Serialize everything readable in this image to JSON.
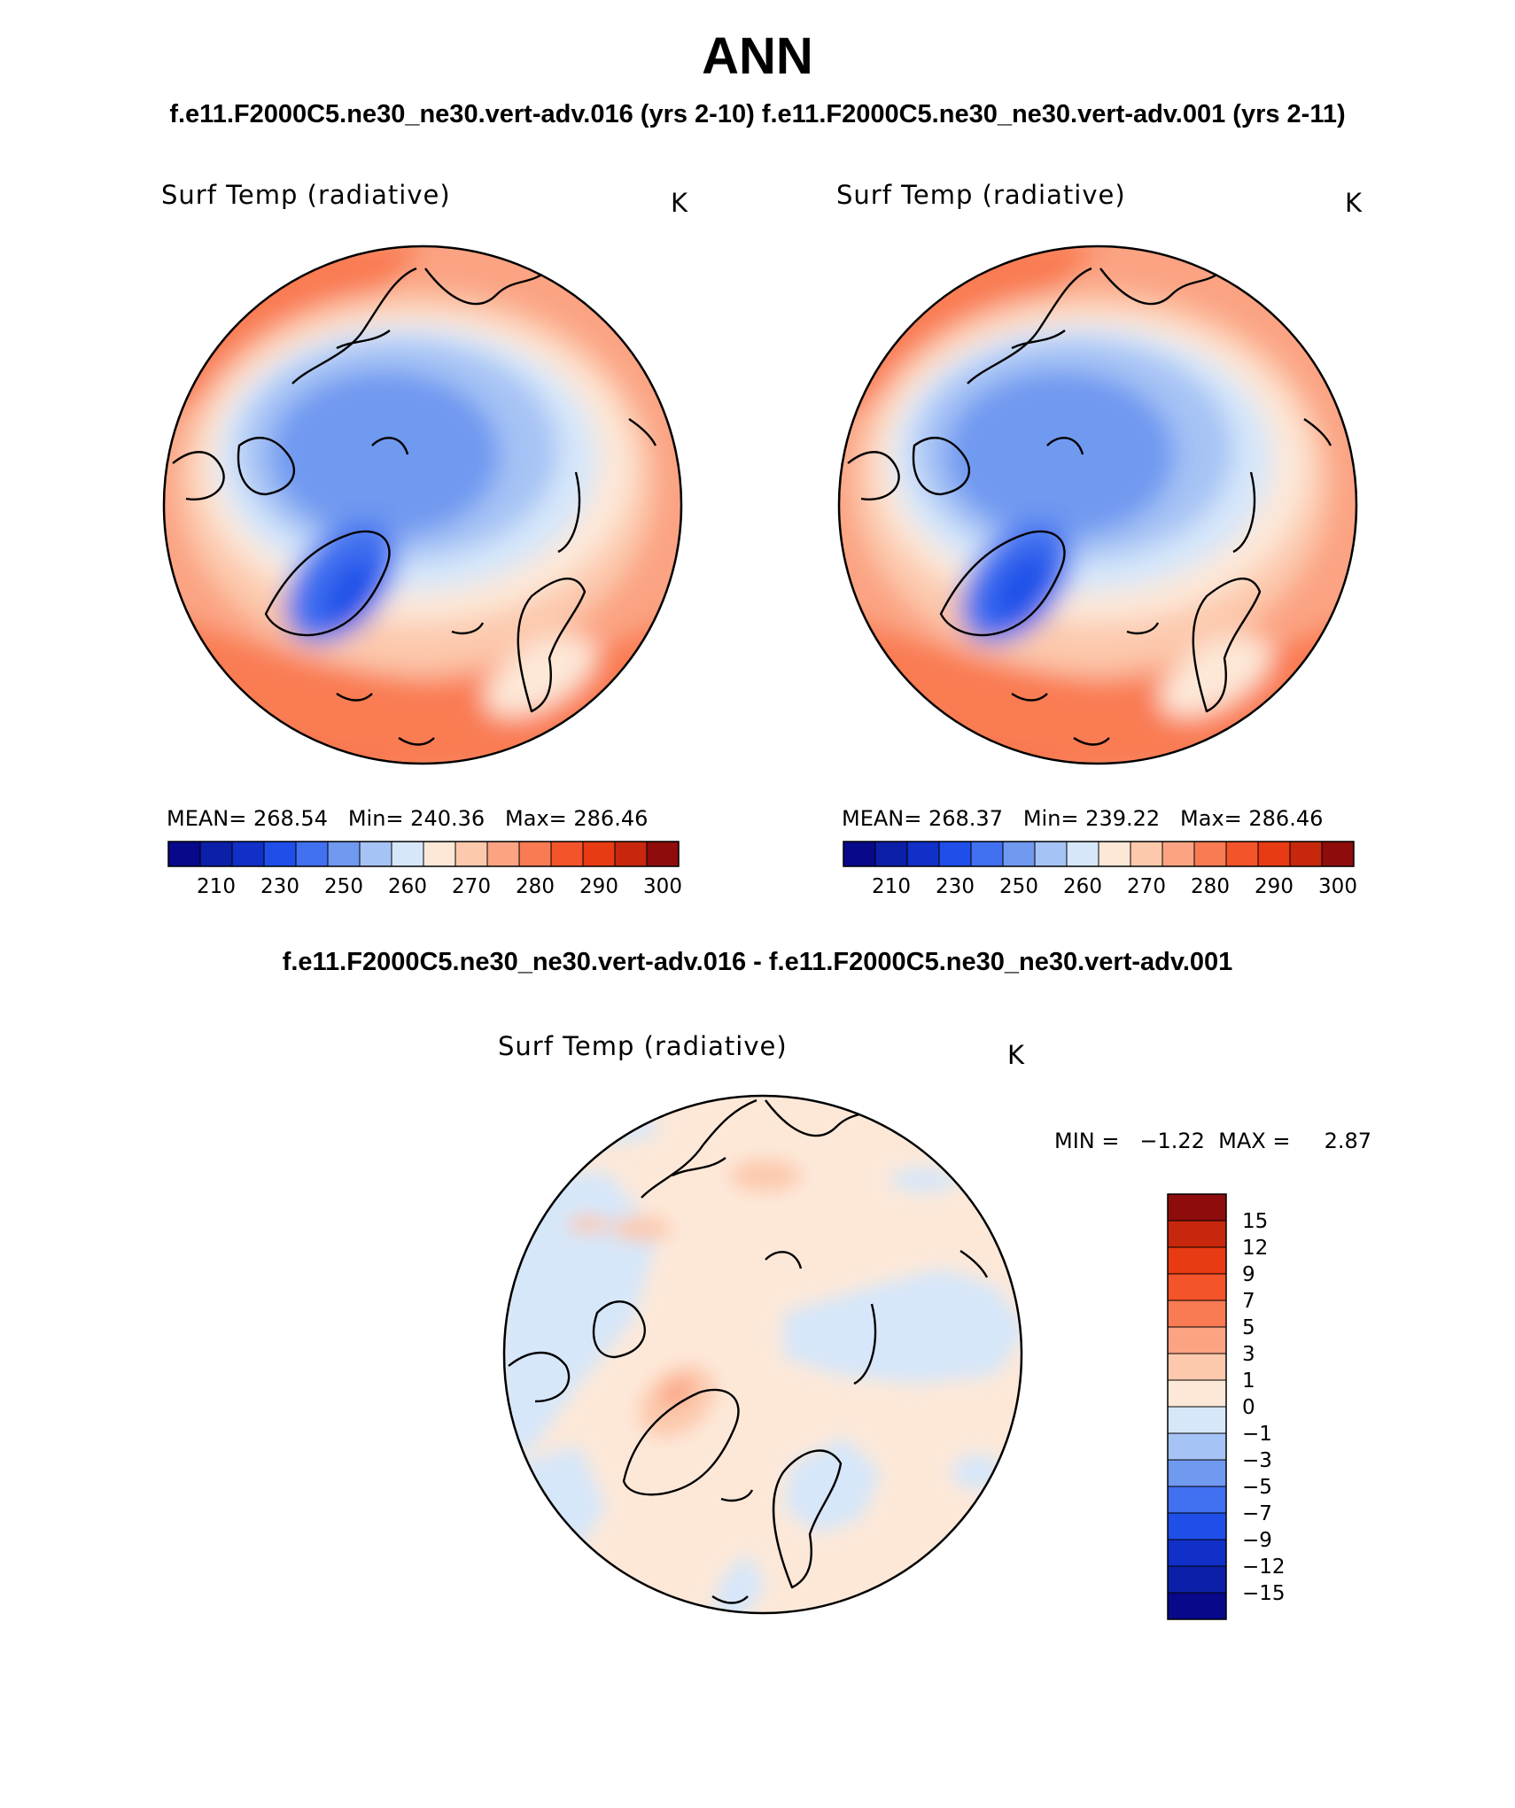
{
  "title": "ANN",
  "subtitle_cases": "f.e11.F2000C5.ne30_ne30.vert-adv.016 (yrs 2-10) f.e11.F2000C5.ne30_ne30.vert-adv.001 (yrs 2-11)",
  "subtitle_diff": "f.e11.F2000C5.ne30_ne30.vert-adv.016 - f.e11.F2000C5.ne30_ne30.vert-adv.001",
  "panels": [
    {
      "id": "case1",
      "title": "Surf Temp (radiative)",
      "unit": "K",
      "stats": "MEAN= 268.54   Min= 240.36   Max= 286.46"
    },
    {
      "id": "case2",
      "title": "Surf Temp (radiative)",
      "unit": "K",
      "stats": "MEAN= 268.37   Min= 239.22   Max= 286.46"
    },
    {
      "id": "diff",
      "title": "Surf Temp (radiative)",
      "unit": "K",
      "stats": "MIN =   −1.22  MAX =     2.87"
    }
  ],
  "abs_colorbar": {
    "colors": [
      "#08088a",
      "#0c1fa8",
      "#1030c8",
      "#1f4fe8",
      "#4170f0",
      "#7099f0",
      "#a6c3f5",
      "#d6e7fa",
      "#fde8d8",
      "#fcc9ad",
      "#fba383",
      "#f97b53",
      "#f45429",
      "#e83a13",
      "#c7280d",
      "#8e0c0c"
    ],
    "labels": [
      "210",
      "230",
      "250",
      "260",
      "270",
      "280",
      "290",
      "300"
    ]
  },
  "diff_colorbar": {
    "colors": [
      "#8e0c0c",
      "#c7280d",
      "#e83a13",
      "#f45429",
      "#f97b53",
      "#fba383",
      "#fcc9ad",
      "#fde8d8",
      "#d6e7fa",
      "#a6c3f5",
      "#7099f0",
      "#4170f0",
      "#1f4fe8",
      "#1030c8",
      "#0c1fa8",
      "#08088a"
    ],
    "labels": [
      "15",
      "12",
      "9",
      "7",
      "5",
      "3",
      "1",
      "0",
      "−1",
      "−3",
      "−5",
      "−7",
      "−9",
      "−12",
      "−15"
    ]
  }
}
